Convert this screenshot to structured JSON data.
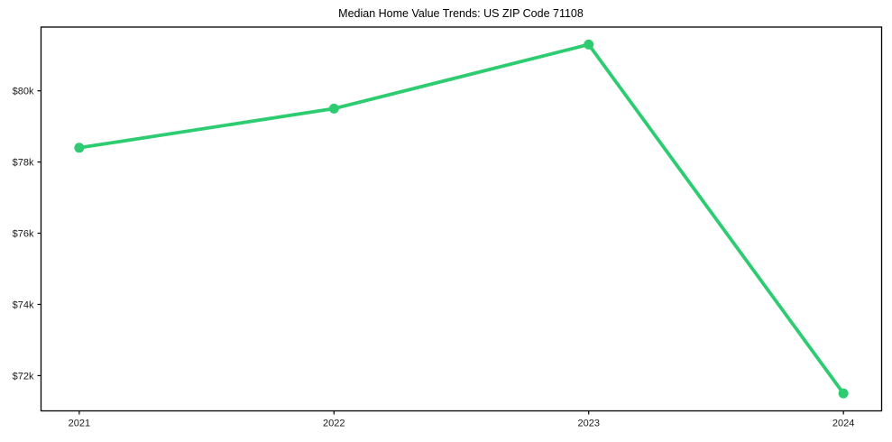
{
  "chart_data": {
    "type": "line",
    "title": "Median Home Value Trends: US ZIP Code 71108",
    "xlabel": "",
    "ylabel": "",
    "x": [
      2021,
      2022,
      2023,
      2024
    ],
    "x_tick_labels": [
      "2021",
      "2022",
      "2023",
      "2024"
    ],
    "series": [
      {
        "name": "median-home-value",
        "values": [
          78400,
          79500,
          81300,
          71500
        ],
        "color": "#2ecc71"
      }
    ],
    "y_ticks": [
      72000,
      74000,
      76000,
      78000,
      80000
    ],
    "y_tick_labels": [
      "$72k",
      "$74k",
      "$76k",
      "$78k",
      "$80k"
    ],
    "xlim": [
      2020.85,
      2024.15
    ],
    "ylim": [
      71010,
      81790
    ],
    "grid": false,
    "legend_position": "none",
    "colors": {
      "line": "#2ecc71",
      "marker": "#2ecc71",
      "spine": "#000000",
      "tick_text": "#1a1a1a",
      "background": "#ffffff"
    }
  }
}
